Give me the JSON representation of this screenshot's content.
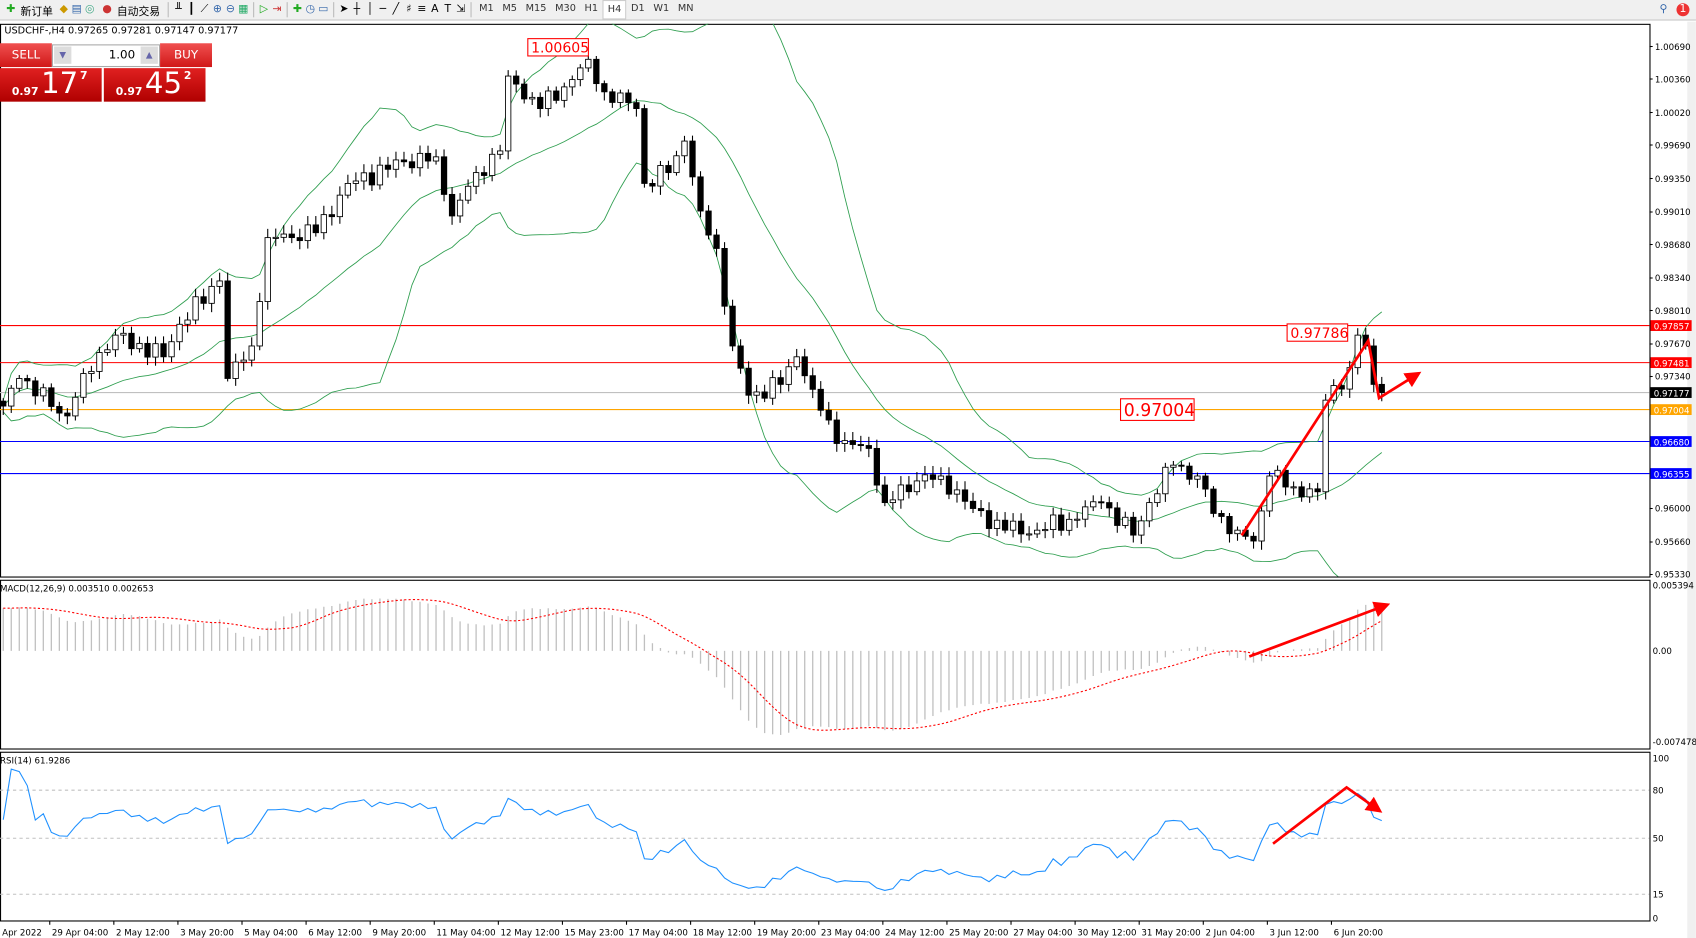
{
  "toolbar": {
    "new_order": "新订单",
    "auto_trading": "自动交易",
    "timeframes": [
      "M1",
      "M5",
      "M15",
      "M30",
      "H1",
      "H4",
      "D1",
      "W1",
      "MN"
    ],
    "selected_timeframe": "H4",
    "notification_count": "1"
  },
  "chart": {
    "title": "USDCHF-,H4  0.97265 0.97281 0.97147 0.97177",
    "one_click": {
      "sell": "SELL",
      "buy": "BUY",
      "lot": "1.00",
      "sell_prefix": "0.97",
      "sell_big": "17",
      "sell_sup": "7",
      "buy_prefix": "0.97",
      "buy_big": "45",
      "buy_sup": "2"
    },
    "price_axis": [
      "1.00690",
      "1.00360",
      "1.00020",
      "0.99690",
      "0.99350",
      "0.99010",
      "0.98680",
      "0.98340",
      "0.98010",
      "0.97670",
      "0.97340",
      "0.96000",
      "0.95660",
      "0.95330"
    ],
    "levels": [
      {
        "price": "0.97857",
        "color": "#ff0000"
      },
      {
        "price": "0.97481",
        "color": "#ff0000"
      },
      {
        "price": "0.97177",
        "color": "#000000",
        "line": "#c0c0c0"
      },
      {
        "price": "0.97004",
        "color": "#ffa500"
      },
      {
        "price": "0.96680",
        "color": "#0000ff"
      },
      {
        "price": "0.96355",
        "color": "#0000ff"
      }
    ],
    "price_labels": [
      "1.00605",
      "0.97786",
      "0.97004"
    ],
    "time_axis": [
      "Apr 2022",
      "29 Apr 04:00",
      "2 May 12:00",
      "3 May 20:00",
      "5 May 04:00",
      "6 May 12:00",
      "9 May 20:00",
      "11 May 04:00",
      "12 May 12:00",
      "15 May 23:00",
      "17 May 04:00",
      "18 May 12:00",
      "19 May 20:00",
      "23 May 04:00",
      "24 May 12:00",
      "25 May 20:00",
      "27 May 04:00",
      "30 May 12:00",
      "31 May 20:00",
      "2 Jun 04:00",
      "3 Jun 12:00",
      "6 Jun 20:00"
    ],
    "price_path": [
      [
        0,
        0.9704
      ],
      [
        2,
        0.9732
      ],
      [
        8,
        0.9694
      ],
      [
        10,
        0.9737
      ],
      [
        14,
        0.9776
      ],
      [
        20,
        0.9754
      ],
      [
        22,
        0.9787
      ],
      [
        27,
        0.9831
      ],
      [
        28,
        0.9732
      ],
      [
        31,
        0.9765
      ],
      [
        33,
        0.9875
      ],
      [
        39,
        0.988
      ],
      [
        43,
        0.993
      ],
      [
        50,
        0.9952
      ],
      [
        54,
        0.9957
      ],
      [
        56,
        0.9897
      ],
      [
        59,
        0.9941
      ],
      [
        62,
        0.9963
      ],
      [
        63,
        1.0039
      ],
      [
        67,
        1.0006
      ],
      [
        70,
        1.0028
      ],
      [
        73,
        1.0056
      ],
      [
        75,
        1.0023
      ],
      [
        79,
        1.0006
      ],
      [
        80,
        0.993
      ],
      [
        83,
        0.9941
      ],
      [
        85,
        0.9973
      ],
      [
        87,
        0.9902
      ],
      [
        89,
        0.9864
      ],
      [
        91,
        0.9765
      ],
      [
        93,
        0.9715
      ],
      [
        97,
        0.9726
      ],
      [
        99,
        0.9754
      ],
      [
        101,
        0.9721
      ],
      [
        104,
        0.9666
      ],
      [
        108,
        0.9661
      ],
      [
        110,
        0.9606
      ],
      [
        114,
        0.9628
      ],
      [
        117,
        0.9633
      ],
      [
        121,
        0.96
      ],
      [
        125,
        0.9578
      ],
      [
        129,
        0.9578
      ],
      [
        133,
        0.9589
      ],
      [
        137,
        0.9606
      ],
      [
        141,
        0.9573
      ],
      [
        143,
        0.9606
      ],
      [
        146,
        0.9644
      ],
      [
        149,
        0.9633
      ],
      [
        151,
        0.9595
      ],
      [
        154,
        0.9578
      ],
      [
        156,
        0.9567
      ],
      [
        158,
        0.9633
      ],
      [
        161,
        0.9622
      ],
      [
        164,
        0.9617
      ],
      [
        165,
        0.971
      ],
      [
        168,
        0.9743
      ],
      [
        169,
        0.9776
      ],
      [
        170,
        0.9765
      ],
      [
        171,
        0.9726
      ],
      [
        172,
        0.97177
      ]
    ],
    "bollinger_color": "#2e9e4f",
    "candle_up": "#ffffff",
    "candle_down": "#000000"
  },
  "macd": {
    "label": "MACD(12,26,9) 0.003510 0.002653",
    "axis": [
      "0.005394",
      "0.00",
      "-0.007478"
    ],
    "max": 0.005394,
    "min": -0.007478,
    "hist_color": "#c0c0c0",
    "signal_color": "#ff0000"
  },
  "rsi": {
    "label": "RSI(14) 61.9286",
    "axis": [
      "100",
      "80",
      "50",
      "15",
      "0"
    ],
    "levels": [
      80,
      50,
      15
    ],
    "color": "#1e90ff"
  },
  "annotation_color": "#ff0000"
}
